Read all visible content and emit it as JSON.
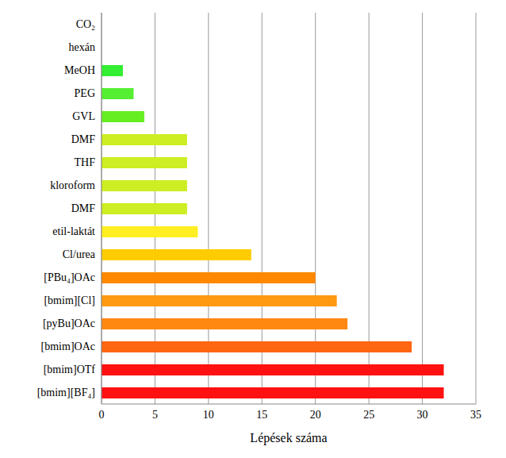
{
  "chart_data": {
    "type": "bar",
    "orientation": "horizontal",
    "x_label": "Lépések száma",
    "categories": [
      "CO₂",
      "hexán",
      "MeOH",
      "PEG",
      "GVL",
      "DMF",
      "THF",
      "kloroform",
      "DMF",
      "etil-laktát",
      "Cl/urea",
      "[PBu₄]OAc",
      "[bmim][Cl]",
      "[pyBu]OAc",
      "[bmim]OAc",
      "[bmim]OTf",
      "[bmim][BF₄]"
    ],
    "values": [
      0,
      0,
      2,
      3,
      4,
      8,
      8,
      8,
      8,
      9,
      14,
      20,
      22,
      23,
      29,
      32,
      32
    ],
    "colors": [
      "#33ee33",
      "#33ee33",
      "#33ee33",
      "#55ee33",
      "#66ee22",
      "#ccee22",
      "#ccee22",
      "#ccee22",
      "#ccee22",
      "#ffee22",
      "#ffcc00",
      "#ff8800",
      "#ff9911",
      "#ff8811",
      "#ff6611",
      "#ff1111",
      "#ff1111"
    ],
    "xlim": [
      0,
      35
    ],
    "xticks": [
      0,
      5,
      10,
      15,
      20,
      25,
      30,
      35
    ],
    "grid": true
  }
}
